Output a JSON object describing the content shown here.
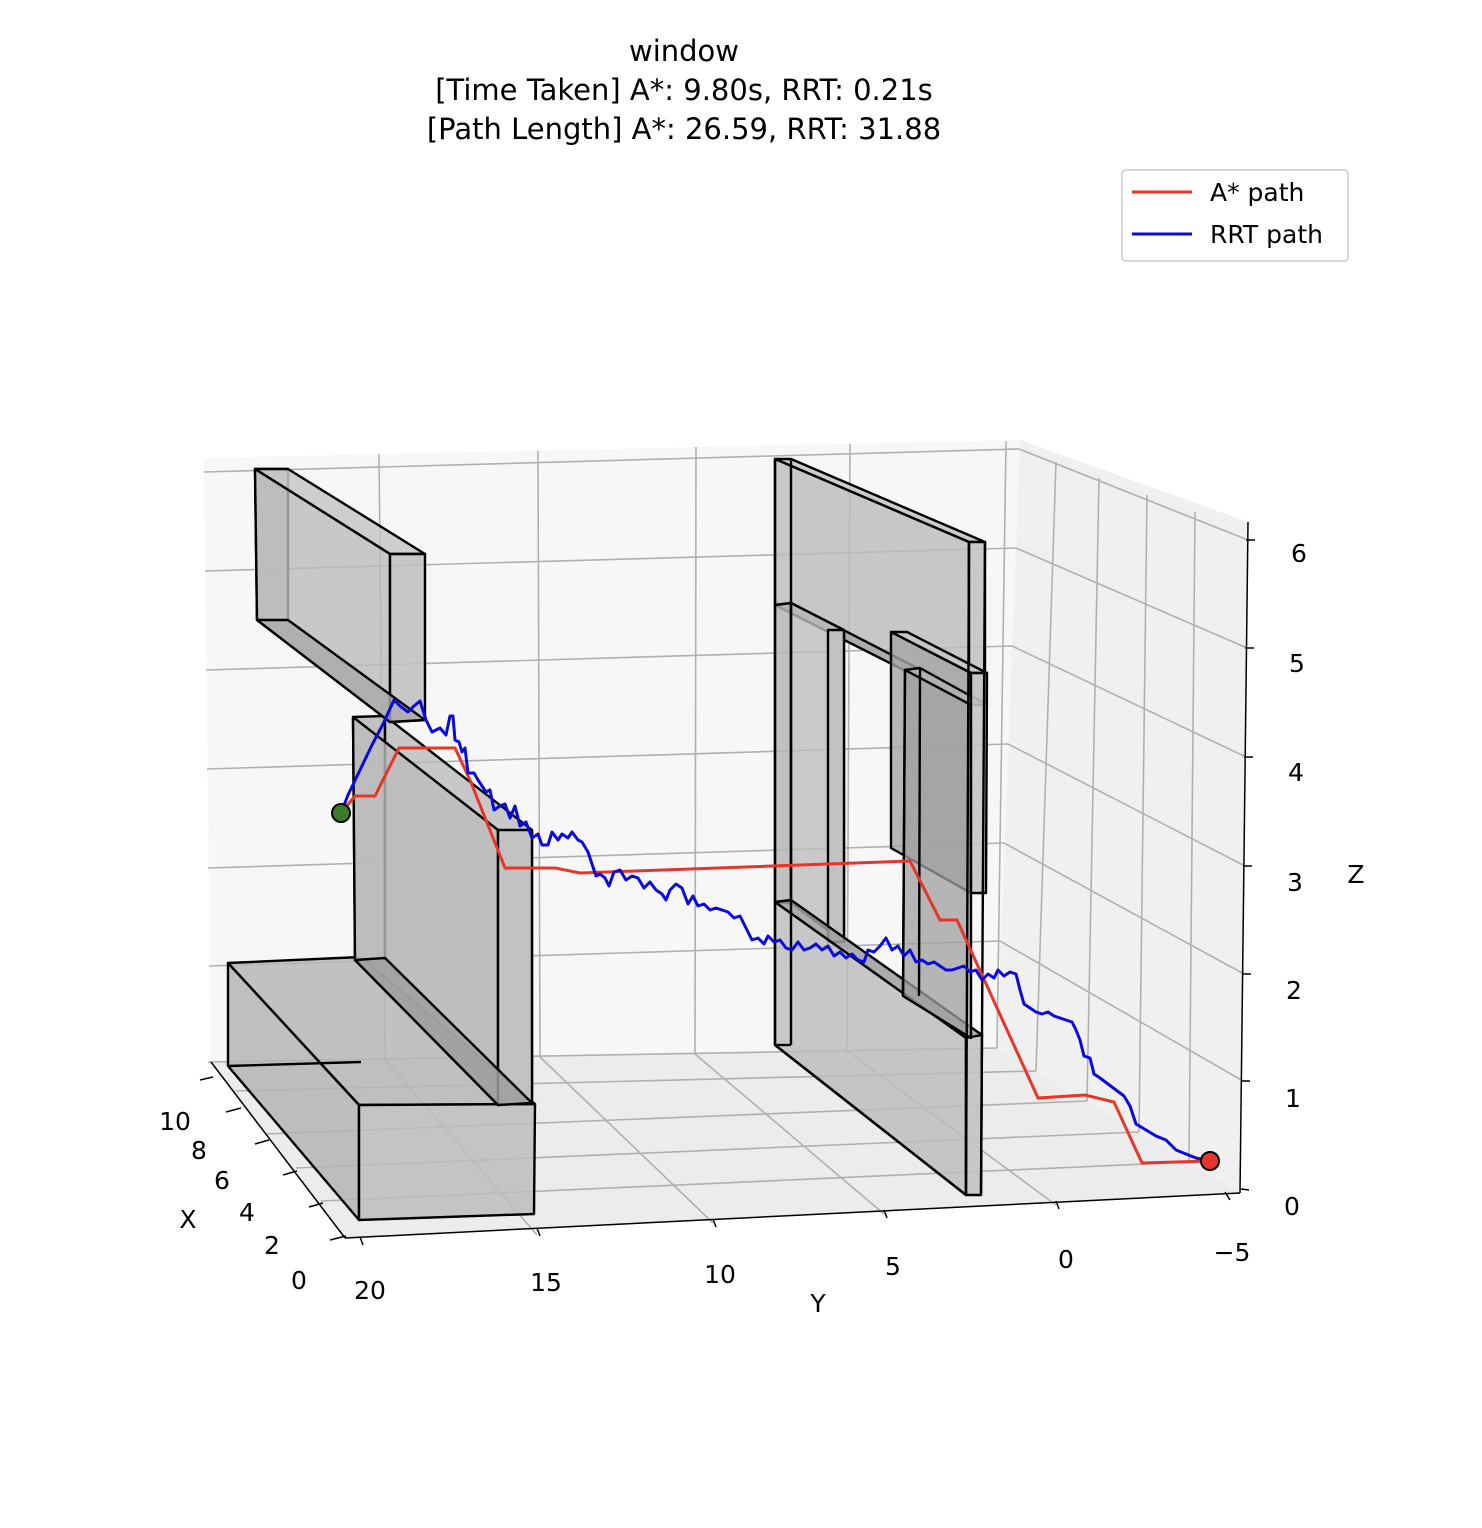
{
  "chart_data": {
    "type": "line",
    "projection": "3d",
    "title": "window\n[Time Taken] A*: 9.80s, RRT: 0.21s\n[Path Length] A*: 26.59, RRT: 31.88",
    "title_lines": [
      "window",
      "[Time Taken] A*: 9.80s, RRT: 0.21s",
      "[Path Length] A*: 26.59, RRT: 31.88"
    ],
    "xlabel": "X",
    "ylabel": "Y",
    "zlabel": "Z",
    "x_ticks": [
      "0",
      "2",
      "4",
      "6",
      "8",
      "10"
    ],
    "y_ticks": [
      "20",
      "15",
      "10",
      "5",
      "0",
      "−5"
    ],
    "z_ticks": [
      "0",
      "1",
      "2",
      "3",
      "4",
      "5",
      "6"
    ],
    "xlim": [
      0,
      10
    ],
    "ylim": [
      -5,
      20
    ],
    "zlim": [
      0,
      6
    ],
    "grid": true,
    "legend_position": "top-right",
    "series": [
      {
        "name": "A* path",
        "color": "#e8352a"
      },
      {
        "name": "RRT path",
        "color": "#0a0ae0"
      }
    ],
    "markers": [
      {
        "role": "start",
        "color": "#3b7a2a"
      },
      {
        "role": "goal",
        "color": "#e8352a"
      }
    ],
    "obstacle_color": "#b0b0b0"
  }
}
